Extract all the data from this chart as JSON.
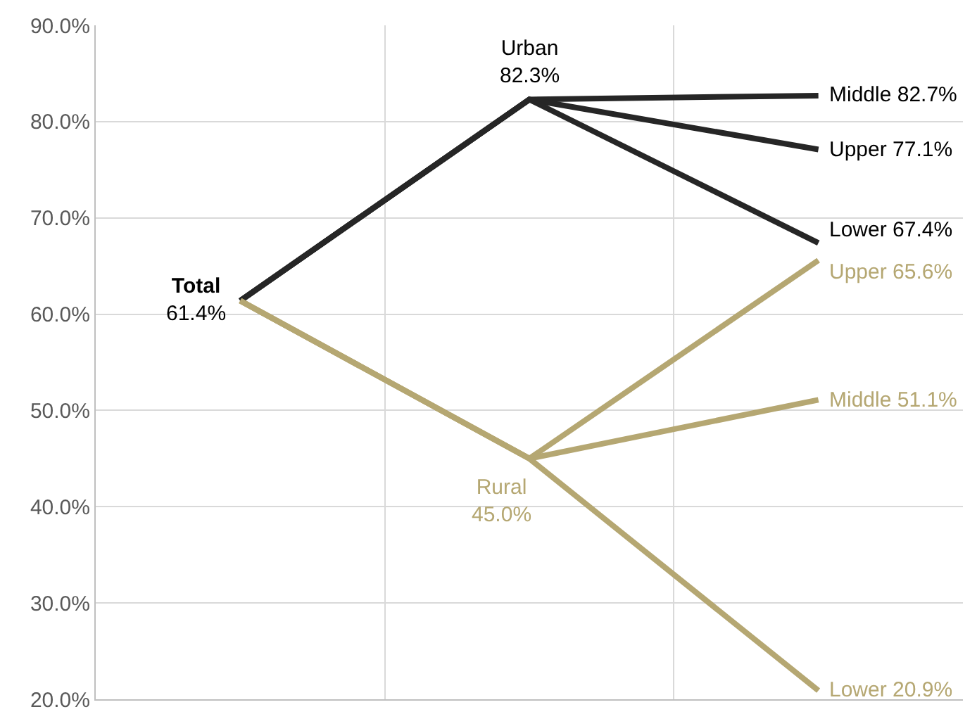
{
  "chart_data": {
    "type": "line",
    "categories": [
      null,
      null,
      null
    ],
    "ylim": [
      20,
      90
    ],
    "yticks": [
      {
        "value": 20,
        "label": "20.0%"
      },
      {
        "value": 30,
        "label": "30.0%"
      },
      {
        "value": 40,
        "label": "40.0%"
      },
      {
        "value": 50,
        "label": "50.0%"
      },
      {
        "value": 60,
        "label": "60.0%"
      },
      {
        "value": 70,
        "label": "70.0%"
      },
      {
        "value": 80,
        "label": "80.0%"
      },
      {
        "value": 90,
        "label": "90.0%"
      }
    ],
    "grid": true,
    "marker": "none",
    "line_style": "solid",
    "series": [
      {
        "color": "#262626",
        "values": [
          61.4,
          82.3,
          82.7
        ],
        "value_labels": [
          "Total\n61.4%",
          "Urban\n82.3%",
          "Middle 82.7%"
        ]
      },
      {
        "color": "#262626",
        "values": [
          61.4,
          82.3,
          77.1
        ],
        "value_labels": [
          null,
          null,
          "Upper 77.1%"
        ]
      },
      {
        "color": "#262626",
        "values": [
          61.4,
          82.3,
          67.4
        ],
        "value_labels": [
          null,
          null,
          "Lower 67.4%"
        ]
      },
      {
        "color": "#b5a772",
        "values": [
          61.4,
          45.0,
          65.6
        ],
        "value_labels": [
          null,
          "Rural\n45.0%",
          "Upper 65.6%"
        ]
      },
      {
        "color": "#b5a772",
        "values": [
          61.4,
          45.0,
          51.1
        ],
        "value_labels": [
          null,
          null,
          "Middle 51.1%"
        ]
      },
      {
        "color": "#b5a772",
        "values": [
          61.4,
          45.0,
          20.9
        ],
        "value_labels": [
          null,
          null,
          "Lower 20.9%"
        ]
      }
    ]
  }
}
